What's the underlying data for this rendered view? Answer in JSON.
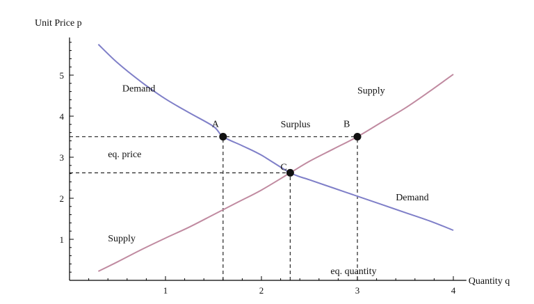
{
  "chart_data": {
    "type": "line",
    "xlabel": "Quantity q",
    "ylabel": "Unit Price p",
    "xlim": [
      0,
      4.1
    ],
    "ylim": [
      0,
      5.85
    ],
    "x_ticks": [
      1,
      2,
      3,
      4
    ],
    "y_ticks": [
      1,
      2,
      3,
      4,
      5
    ],
    "x_tick_labels": [
      "1",
      "2",
      "3",
      "4"
    ],
    "y_tick_labels": [
      "1",
      "2",
      "3",
      "4",
      "5"
    ],
    "grid": false,
    "legend": "none",
    "series": [
      {
        "key": "demand",
        "color": "#7f7fc8",
        "points": [
          [
            0.3,
            5.75
          ],
          [
            0.5,
            5.3
          ],
          [
            0.75,
            4.83
          ],
          [
            1.0,
            4.42
          ],
          [
            1.25,
            4.08
          ],
          [
            1.5,
            3.75
          ],
          [
            1.6,
            3.5
          ],
          [
            1.8,
            3.28
          ],
          [
            2.0,
            3.05
          ],
          [
            2.3,
            2.62
          ],
          [
            2.5,
            2.45
          ],
          [
            2.75,
            2.25
          ],
          [
            3.0,
            2.05
          ],
          [
            3.25,
            1.85
          ],
          [
            3.5,
            1.65
          ],
          [
            3.75,
            1.45
          ],
          [
            4.0,
            1.22
          ]
        ]
      },
      {
        "key": "supply",
        "color": "#c08aa0",
        "points": [
          [
            0.3,
            0.22
          ],
          [
            0.5,
            0.45
          ],
          [
            0.75,
            0.75
          ],
          [
            1.0,
            1.03
          ],
          [
            1.25,
            1.3
          ],
          [
            1.5,
            1.6
          ],
          [
            1.75,
            1.9
          ],
          [
            2.0,
            2.2
          ],
          [
            2.3,
            2.62
          ],
          [
            2.5,
            2.9
          ],
          [
            2.75,
            3.2
          ],
          [
            3.0,
            3.5
          ],
          [
            3.25,
            3.85
          ],
          [
            3.5,
            4.2
          ],
          [
            3.75,
            4.6
          ],
          [
            4.0,
            5.02
          ]
        ]
      }
    ],
    "points": [
      {
        "label": "A",
        "x": 1.6,
        "y": 3.5
      },
      {
        "label": "B",
        "x": 3.0,
        "y": 3.5
      },
      {
        "label": "C",
        "x": 2.3,
        "y": 2.62
      }
    ],
    "dashed_lines": [
      {
        "from": [
          0,
          3.5
        ],
        "to": [
          3.0,
          3.5
        ]
      },
      {
        "from": [
          0,
          2.62
        ],
        "to": [
          2.3,
          2.62
        ]
      },
      {
        "from": [
          1.6,
          0
        ],
        "to": [
          1.6,
          3.5
        ]
      },
      {
        "from": [
          2.3,
          0
        ],
        "to": [
          2.3,
          2.62
        ]
      },
      {
        "from": [
          3.0,
          0
        ],
        "to": [
          3.0,
          3.5
        ]
      }
    ],
    "annotations": [
      {
        "key": "demand_left",
        "text": "Demand",
        "x": 0.55,
        "y": 4.6
      },
      {
        "key": "supply_top",
        "text": "Supply",
        "x": 3.0,
        "y": 4.55
      },
      {
        "key": "surplus",
        "text": "Surplus",
        "x": 2.2,
        "y": 3.73
      },
      {
        "key": "eq_price",
        "text": "eq. price",
        "x": 0.4,
        "y": 3.0
      },
      {
        "key": "demand_right",
        "text": "Demand",
        "x": 3.4,
        "y": 1.95
      },
      {
        "key": "supply_left",
        "text": "Supply",
        "x": 0.4,
        "y": 0.95
      },
      {
        "key": "eq_quantity",
        "text": "eq. quantity",
        "x": 2.72,
        "y": 0.15
      }
    ]
  }
}
